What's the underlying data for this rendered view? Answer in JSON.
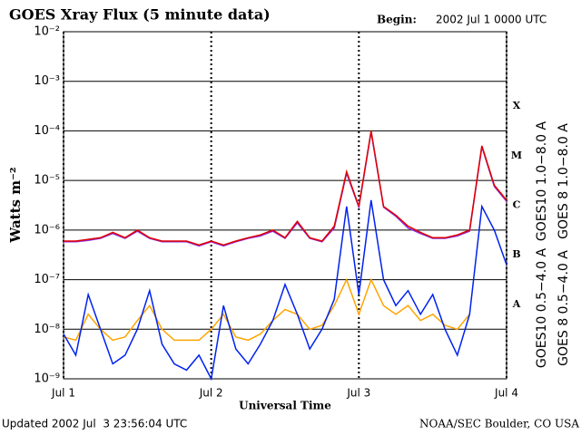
{
  "chart_data": {
    "type": "line",
    "title": "GOES Xray Flux (5 minute data)",
    "begin_label": "Begin:",
    "begin_value": "2002 Jul 1 0000 UTC",
    "ylabel": "Watts m⁻²",
    "xlabel": "Universal Time",
    "footer_left": "Updated 2002 Jul  3 23:56:04 UTC",
    "footer_right": "NOAA/SEC Boulder, CO USA",
    "log_y": true,
    "grid": true,
    "ylim": [
      1e-09,
      0.01
    ],
    "yticks": [
      {
        "value": 1e-09,
        "label": "10⁻⁹"
      },
      {
        "value": 1e-08,
        "label": "10⁻⁸"
      },
      {
        "value": 1e-07,
        "label": "10⁻⁷"
      },
      {
        "value": 1e-06,
        "label": "10⁻⁶"
      },
      {
        "value": 1e-05,
        "label": "10⁻⁵"
      },
      {
        "value": 0.0001,
        "label": "10⁻⁴"
      },
      {
        "value": 0.001,
        "label": "10⁻³"
      },
      {
        "value": 0.01,
        "label": "10⁻²"
      }
    ],
    "xlim": [
      0,
      3
    ],
    "xticks": [
      {
        "value": 0,
        "label": "Jul 1"
      },
      {
        "value": 1,
        "label": "Jul 2"
      },
      {
        "value": 2,
        "label": "Jul 3"
      },
      {
        "value": 3,
        "label": "Jul 4"
      }
    ],
    "flare_classes": [
      "A",
      "B",
      "C",
      "M",
      "X"
    ],
    "x": [
      0,
      0.083,
      0.167,
      0.25,
      0.333,
      0.417,
      0.5,
      0.583,
      0.667,
      0.75,
      0.833,
      0.917,
      1,
      1.083,
      1.167,
      1.25,
      1.333,
      1.417,
      1.5,
      1.583,
      1.667,
      1.75,
      1.833,
      1.917,
      2,
      2.083,
      2.167,
      2.25,
      2.333,
      2.417,
      2.5,
      2.583,
      2.667,
      2.75,
      2.833,
      2.917,
      3
    ],
    "series": [
      {
        "name": "GOES10 1.0−8.0 A",
        "color": "#8a2be2",
        "values": [
          5.8e-07,
          5.8e-07,
          6.2e-07,
          6.8e-07,
          8.5e-07,
          6.8e-07,
          9.5e-07,
          6.8e-07,
          5.8e-07,
          5.8e-07,
          5.8e-07,
          4.8e-07,
          5.8e-07,
          4.8e-07,
          5.8e-07,
          6.8e-07,
          7.6e-07,
          9.5e-07,
          6.8e-07,
          1.4e-06,
          6.8e-07,
          5.8e-07,
          1.1e-06,
          1.4e-05,
          2.9e-06,
          9.5e-05,
          2.9e-06,
          1.9e-06,
          1.1e-06,
          8.5e-07,
          6.8e-07,
          6.8e-07,
          7.6e-07,
          9.5e-07,
          4.8e-05,
          7.6e-06,
          3.8e-06
        ]
      },
      {
        "name": "GOES 8 1.0−8.0 A",
        "color": "#e00000",
        "values": [
          6e-07,
          6e-07,
          6.5e-07,
          7e-07,
          9e-07,
          7e-07,
          1e-06,
          7e-07,
          6e-07,
          6e-07,
          6e-07,
          5e-07,
          6e-07,
          5e-07,
          6e-07,
          7e-07,
          8e-07,
          1e-06,
          7e-07,
          1.5e-06,
          7e-07,
          6e-07,
          1.2e-06,
          1.5e-05,
          3e-06,
          0.0001,
          3e-06,
          2e-06,
          1.2e-06,
          9e-07,
          7e-07,
          7e-07,
          8e-07,
          1e-06,
          5e-05,
          8e-06,
          4e-06
        ]
      },
      {
        "name": "GOES10 0.5−4.0 A",
        "color": "#ffa500",
        "values": [
          7e-09,
          6e-09,
          2e-08,
          1e-08,
          6e-09,
          7e-09,
          1.5e-08,
          3e-08,
          1e-08,
          6e-09,
          6e-09,
          6e-09,
          1e-08,
          2e-08,
          7e-09,
          6e-09,
          8e-09,
          1.5e-08,
          2.5e-08,
          2e-08,
          1e-08,
          1.2e-08,
          3e-08,
          1e-07,
          2e-08,
          1e-07,
          3e-08,
          2e-08,
          3e-08,
          1.5e-08,
          2e-08,
          1.2e-08,
          1e-08,
          2e-08,
          null,
          null,
          null
        ]
      },
      {
        "name": "GOES 8 0.5−4.0 A",
        "color": "#0022ee",
        "values": [
          8e-09,
          3e-09,
          5e-08,
          1e-08,
          2e-09,
          3e-09,
          1e-08,
          6e-08,
          5e-09,
          2e-09,
          1.5e-09,
          3e-09,
          1e-09,
          3e-08,
          4e-09,
          2e-09,
          5e-09,
          1.5e-08,
          8e-08,
          2e-08,
          4e-09,
          1e-08,
          4e-08,
          3e-06,
          5e-08,
          4e-06,
          1e-07,
          3e-08,
          6e-08,
          2e-08,
          5e-08,
          1e-08,
          3e-09,
          2e-08,
          3e-06,
          1e-06,
          2e-07
        ]
      }
    ]
  }
}
